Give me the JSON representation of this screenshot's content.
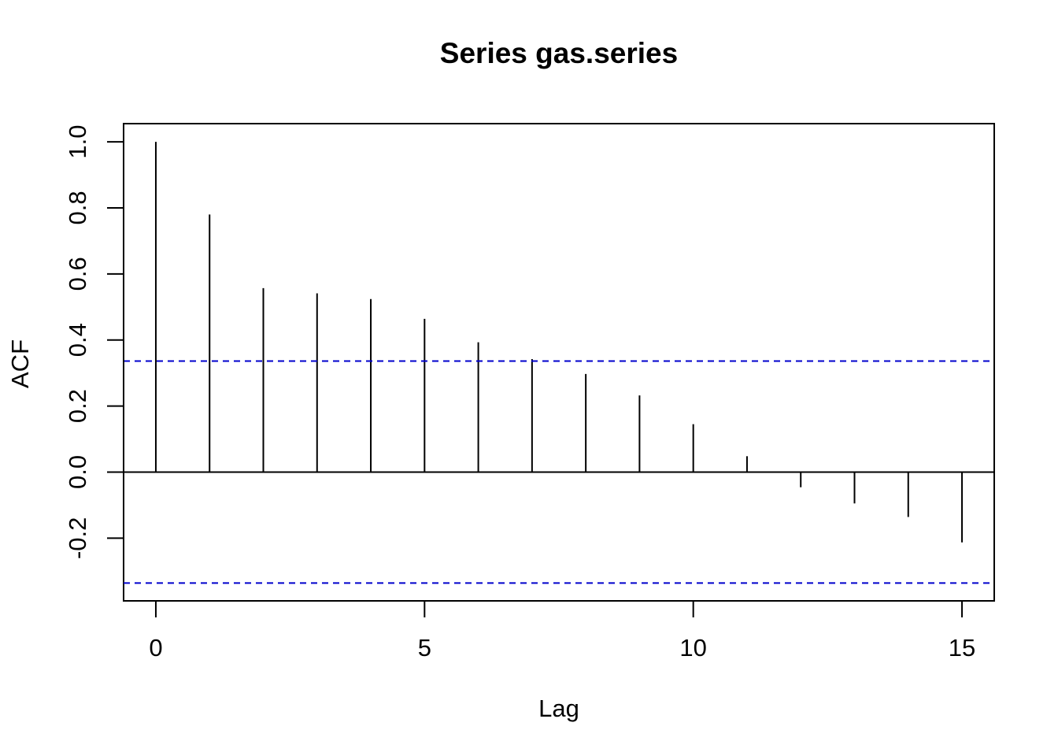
{
  "chart_data": {
    "type": "bar",
    "title": "Series  gas.series",
    "xlabel": "Lag",
    "ylabel": "ACF",
    "x": [
      0,
      1,
      2,
      3,
      4,
      5,
      6,
      7,
      8,
      9,
      10,
      11,
      12,
      13,
      14,
      15
    ],
    "values": [
      1.0,
      0.78,
      0.557,
      0.541,
      0.524,
      0.464,
      0.393,
      0.342,
      0.297,
      0.232,
      0.145,
      0.048,
      -0.046,
      -0.095,
      -0.136,
      -0.213
    ],
    "xlim": [
      -0.6,
      15.6
    ],
    "ylim": [
      -0.39,
      1.055
    ],
    "xticks": [
      0,
      5,
      10,
      15
    ],
    "yticks": [
      -0.2,
      0.0,
      0.2,
      0.4,
      0.6,
      0.8,
      1.0
    ],
    "ytick_labels": [
      "-0.2",
      "0.0",
      "0.2",
      "0.4",
      "0.6",
      "0.8",
      "1.0"
    ],
    "confidence_bound": 0.336,
    "colors": {
      "bars": "#000000",
      "confidence_lines": "#0000cc",
      "zero_line": "#000000"
    }
  }
}
